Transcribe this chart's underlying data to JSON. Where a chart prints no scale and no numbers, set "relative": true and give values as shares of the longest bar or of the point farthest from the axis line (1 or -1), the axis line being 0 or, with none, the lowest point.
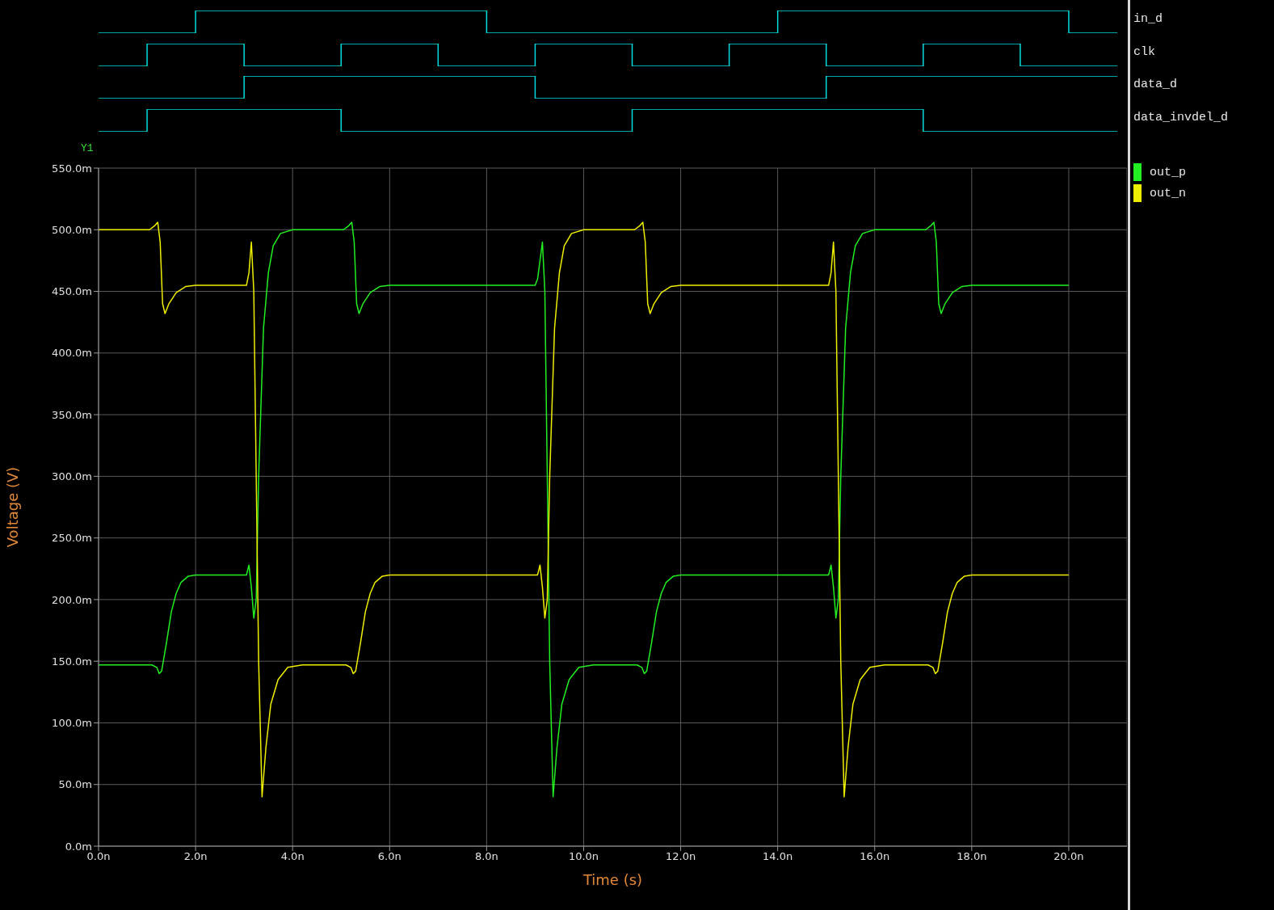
{
  "chart_data": [
    {
      "type": "step",
      "relative": true,
      "categories": [
        null,
        null,
        null,
        null,
        null,
        null,
        null,
        null,
        null,
        null,
        null,
        null,
        null,
        null,
        null,
        null,
        null,
        null,
        null,
        null,
        null,
        null
      ],
      "series": [
        {
          "name": "in_d",
          "color": "#00dcdc",
          "values": [
            0,
            0,
            1,
            1,
            1,
            1,
            1,
            1,
            0,
            0,
            0,
            0,
            0,
            0,
            1,
            1,
            1,
            1,
            1,
            1,
            0,
            0
          ]
        }
      ]
    },
    {
      "type": "step",
      "relative": true,
      "categories": [
        null,
        null,
        null,
        null,
        null,
        null,
        null,
        null,
        null,
        null,
        null,
        null,
        null,
        null,
        null,
        null,
        null,
        null,
        null,
        null,
        null,
        null
      ],
      "series": [
        {
          "name": "clk",
          "color": "#00dcdc",
          "values": [
            0,
            1,
            1,
            0,
            0,
            1,
            1,
            0,
            0,
            1,
            1,
            0,
            0,
            1,
            1,
            0,
            0,
            1,
            1,
            0,
            0,
            0
          ]
        }
      ]
    },
    {
      "type": "step",
      "relative": true,
      "categories": [
        null,
        null,
        null,
        null,
        null,
        null,
        null,
        null,
        null,
        null,
        null,
        null,
        null,
        null,
        null,
        null,
        null,
        null,
        null,
        null,
        null,
        null
      ],
      "series": [
        {
          "name": "data_d",
          "color": "#00dcdc",
          "values": [
            0,
            0,
            0,
            1,
            1,
            1,
            1,
            1,
            1,
            0,
            0,
            0,
            0,
            0,
            0,
            1,
            1,
            1,
            1,
            1,
            1,
            1
          ]
        }
      ]
    },
    {
      "type": "step",
      "relative": true,
      "categories": [
        null,
        null,
        null,
        null,
        null,
        null,
        null,
        null,
        null,
        null,
        null,
        null,
        null,
        null,
        null,
        null,
        null,
        null,
        null,
        null,
        null,
        null
      ],
      "series": [
        {
          "name": "data_invdel_d",
          "color": "#00dcdc",
          "values": [
            0,
            1,
            1,
            1,
            1,
            0,
            0,
            0,
            0,
            0,
            0,
            1,
            1,
            1,
            1,
            1,
            1,
            0,
            0,
            0,
            0,
            0
          ]
        }
      ]
    },
    {
      "type": "line",
      "xlabel": "Time (s)",
      "ylabel": "Voltage (V)",
      "annotations": [
        "Y1"
      ],
      "xlim": [
        0,
        21.2
      ],
      "ylim": [
        0,
        550
      ],
      "grid": true,
      "legend": "right",
      "xticks": [
        {
          "value": 0,
          "label": "0.0n"
        },
        {
          "value": 2,
          "label": "2.0n"
        },
        {
          "value": 4,
          "label": "4.0n"
        },
        {
          "value": 6,
          "label": "6.0n"
        },
        {
          "value": 8,
          "label": "8.0n"
        },
        {
          "value": 10,
          "label": "10.0n"
        },
        {
          "value": 12,
          "label": "12.0n"
        },
        {
          "value": 14,
          "label": "14.0n"
        },
        {
          "value": 16,
          "label": "16.0n"
        },
        {
          "value": 18,
          "label": "18.0n"
        },
        {
          "value": 20,
          "label": "20.0n"
        }
      ],
      "yticks": [
        {
          "value": 0,
          "label": "0.0m"
        },
        {
          "value": 50,
          "label": "50.0m"
        },
        {
          "value": 100,
          "label": "100.0m"
        },
        {
          "value": 150,
          "label": "150.0m"
        },
        {
          "value": 200,
          "label": "200.0m"
        },
        {
          "value": 250,
          "label": "250.0m"
        },
        {
          "value": 300,
          "label": "300.0m"
        },
        {
          "value": 350,
          "label": "350.0m"
        },
        {
          "value": 400,
          "label": "400.0m"
        },
        {
          "value": 450,
          "label": "450.0m"
        },
        {
          "value": 500,
          "label": "500.0m"
        },
        {
          "value": 550,
          "label": "550.0m"
        }
      ],
      "series": [
        {
          "name": "out_p",
          "color": "#22ee22",
          "x": [
            0,
            1.1,
            1.2,
            1.25,
            1.3,
            1.4,
            1.5,
            1.6,
            1.7,
            1.85,
            2.0,
            3.05,
            3.1,
            3.15,
            3.2,
            3.25,
            3.3,
            3.35,
            3.4,
            3.5,
            3.6,
            3.75,
            4.0,
            5.05,
            5.15,
            5.22,
            5.27,
            5.32,
            5.37,
            5.45,
            5.6,
            5.8,
            6.0,
            9.0,
            9.05,
            9.15,
            9.2,
            9.25,
            9.3,
            9.37,
            9.45,
            9.55,
            9.7,
            9.9,
            10.2,
            11.1,
            11.2,
            11.25,
            11.3,
            11.4,
            11.5,
            11.6,
            11.7,
            11.85,
            12.0,
            15.05,
            15.1,
            15.15,
            15.2,
            15.25,
            15.3,
            15.35,
            15.4,
            15.5,
            15.6,
            15.75,
            16.0,
            17.05,
            17.15,
            17.22,
            17.27,
            17.32,
            17.37,
            17.45,
            17.6,
            17.8,
            18.0,
            20.0
          ],
          "values": [
            147,
            147,
            145,
            140,
            142,
            165,
            190,
            205,
            214,
            219,
            220,
            220,
            228,
            210,
            185,
            200,
            300,
            360,
            420,
            465,
            487,
            497,
            500,
            500,
            503,
            506,
            490,
            440,
            432,
            440,
            449,
            454,
            455,
            455,
            460,
            490,
            450,
            300,
            150,
            40,
            80,
            115,
            135,
            145,
            147,
            147,
            145,
            140,
            142,
            165,
            190,
            205,
            214,
            219,
            220,
            220,
            228,
            210,
            185,
            200,
            300,
            360,
            420,
            465,
            487,
            497,
            500,
            500,
            503,
            506,
            490,
            440,
            432,
            440,
            449,
            454,
            455,
            455
          ]
        },
        {
          "name": "out_n",
          "color": "#eeee00",
          "x": [
            0,
            1.05,
            1.15,
            1.22,
            1.27,
            1.32,
            1.37,
            1.45,
            1.6,
            1.8,
            2.0,
            3.05,
            3.1,
            3.15,
            3.2,
            3.25,
            3.3,
            3.37,
            3.45,
            3.55,
            3.7,
            3.9,
            4.2,
            5.1,
            5.2,
            5.25,
            5.3,
            5.4,
            5.5,
            5.6,
            5.7,
            5.85,
            6.0,
            9.05,
            9.1,
            9.15,
            9.2,
            9.25,
            9.3,
            9.35,
            9.4,
            9.5,
            9.6,
            9.75,
            10.0,
            11.05,
            11.15,
            11.22,
            11.27,
            11.32,
            11.37,
            11.45,
            11.6,
            11.8,
            12.0,
            15.05,
            15.1,
            15.15,
            15.2,
            15.25,
            15.3,
            15.37,
            15.45,
            15.55,
            15.7,
            15.9,
            16.2,
            17.1,
            17.2,
            17.25,
            17.3,
            17.4,
            17.5,
            17.6,
            17.7,
            17.85,
            18.0,
            20.0
          ],
          "values": [
            500,
            500,
            503,
            506,
            490,
            440,
            432,
            440,
            449,
            454,
            455,
            455,
            465,
            490,
            450,
            300,
            150,
            40,
            80,
            115,
            135,
            145,
            147,
            147,
            145,
            140,
            142,
            165,
            190,
            205,
            214,
            219,
            220,
            220,
            228,
            210,
            185,
            200,
            300,
            360,
            420,
            465,
            487,
            497,
            500,
            500,
            503,
            506,
            490,
            440,
            432,
            440,
            449,
            454,
            455,
            455,
            465,
            490,
            450,
            300,
            150,
            40,
            80,
            115,
            135,
            145,
            147,
            147,
            145,
            140,
            142,
            165,
            190,
            205,
            214,
            219,
            220,
            220
          ]
        }
      ]
    }
  ]
}
